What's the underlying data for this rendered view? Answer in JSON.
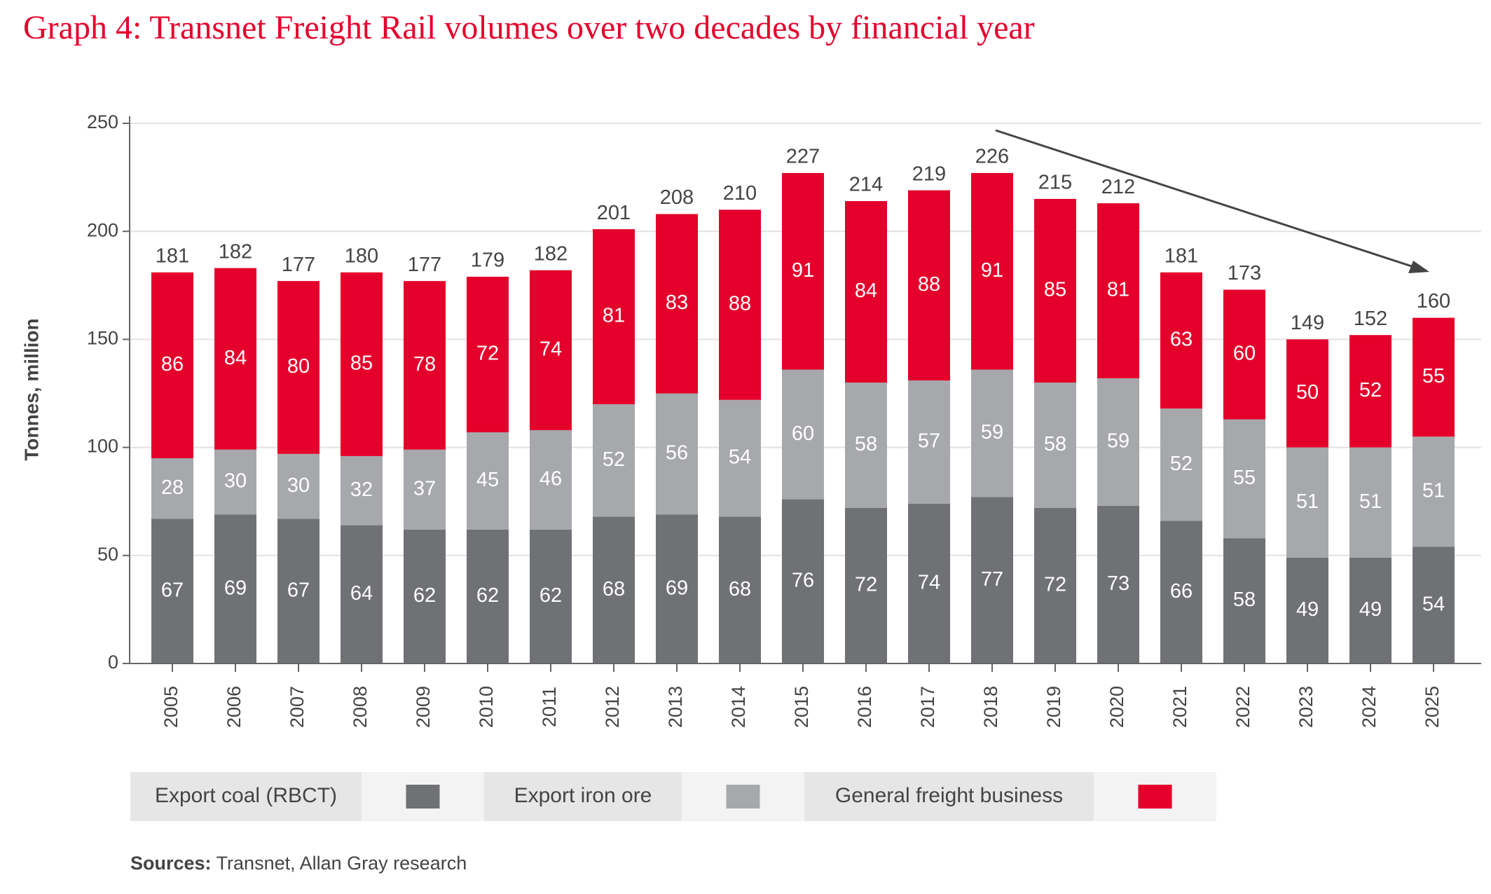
{
  "chart_data": {
    "type": "stacked-bar",
    "title": "Graph 4: Transnet Freight Rail volumes over two decades by financial year",
    "y_label": "Tonnes, million",
    "categories": [
      "2005",
      "2006",
      "2007",
      "2008",
      "2009",
      "2010",
      "2011",
      "2012",
      "2013",
      "2014",
      "2015",
      "2016",
      "2017",
      "2018",
      "2019",
      "2020",
      "2021",
      "2022",
      "2023",
      "2024",
      "2025"
    ],
    "series": [
      {
        "name": "Export coal (RBCT)",
        "color": "#707175",
        "values": [
          67,
          69,
          67,
          64,
          62,
          62,
          62,
          68,
          69,
          68,
          76,
          72,
          74,
          77,
          72,
          73,
          66,
          58,
          49,
          49,
          54
        ]
      },
      {
        "name": "Export iron ore",
        "color": "#a7a8ab",
        "values": [
          28,
          30,
          30,
          32,
          37,
          45,
          46,
          52,
          56,
          54,
          60,
          58,
          57,
          59,
          58,
          59,
          52,
          55,
          51,
          51,
          51
        ]
      },
      {
        "name": "General freight business",
        "color": "#e4002b",
        "values": [
          86,
          84,
          80,
          85,
          78,
          72,
          74,
          81,
          83,
          88,
          91,
          84,
          88,
          91,
          85,
          81,
          63,
          60,
          50,
          52,
          55
        ]
      }
    ],
    "totals": [
      181,
      182,
      177,
      180,
      177,
      179,
      182,
      201,
      208,
      210,
      227,
      214,
      219,
      226,
      215,
      212,
      181,
      173,
      149,
      152,
      160
    ],
    "ylim": [
      0,
      250
    ],
    "yticks": [
      0,
      50,
      100,
      150,
      200,
      250
    ],
    "grid": true,
    "source": {
      "label": "Sources:",
      "text": "Transnet, Allan Gray research"
    }
  }
}
